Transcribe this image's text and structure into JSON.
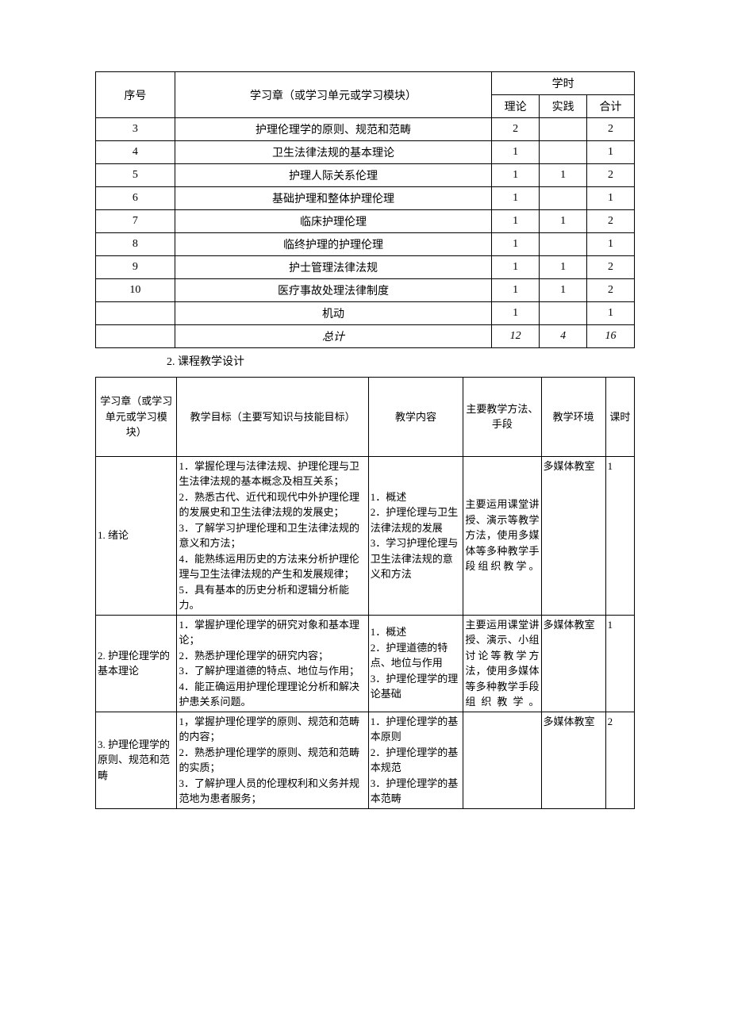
{
  "table1": {
    "header": {
      "seq": "序号",
      "chapter": "学习章（或学习单元或学习模块）",
      "hours": "学时",
      "theory": "理论",
      "practice": "实践",
      "total": "合计"
    },
    "rows": [
      {
        "seq": "3",
        "chapter": "护理伦理学的原则、规范和范畴",
        "theory": "2",
        "practice": "",
        "total": "2"
      },
      {
        "seq": "4",
        "chapter": "卫生法律法规的基本理论",
        "theory": "1",
        "practice": "",
        "total": "1"
      },
      {
        "seq": "5",
        "chapter": "护理人际关系伦理",
        "theory": "1",
        "practice": "1",
        "total": "2"
      },
      {
        "seq": "6",
        "chapter": "基础护理和整体护理伦理",
        "theory": "1",
        "practice": "",
        "total": "1"
      },
      {
        "seq": "7",
        "chapter": "临床护理伦理",
        "theory": "1",
        "practice": "1",
        "total": "2"
      },
      {
        "seq": "8",
        "chapter": "临终护理的护理伦理",
        "theory": "1",
        "practice": "",
        "total": "1"
      },
      {
        "seq": "9",
        "chapter": "护士管理法律法规",
        "theory": "1",
        "practice": "1",
        "total": "2"
      },
      {
        "seq": "10",
        "chapter": "医疗事故处理法律制度",
        "theory": "1",
        "practice": "1",
        "total": "2"
      },
      {
        "seq": "",
        "chapter": "机动",
        "theory": "1",
        "practice": "",
        "total": "1"
      }
    ],
    "totalRow": {
      "seq": "",
      "chapter": "总计",
      "theory": "12",
      "practice": "4",
      "total": "16"
    }
  },
  "sectionHeading": "2. 课程教学设计",
  "table2": {
    "header": {
      "c1": "学习章（或学习单元或学习模块）",
      "c2": "教学目标（主要写知识与技能目标）",
      "c3": "教学内容",
      "c4": "主要教学方法、手段",
      "c5": "教学环境",
      "c6": "课时"
    },
    "rows": [
      {
        "c1": "1. 绪论",
        "c2": "1．掌握伦理与法律法规、护理伦理与卫生法律法规的基本概念及相互关系；\n2．熟悉古代、近代和现代中外护理伦理的发展史和卫生法律法规的发展史；\n3．了解学习护理伦理和卫生法律法规的意义和方法；\n4．能熟练运用历史的方法来分析护理伦理与卫生法律法规的产生和发展规律；\n5．具有基本的历史分析和逻辑分析能力。",
        "c3": "1．概述\n2．护理伦理与卫生法律法规的发展\n3．学习护理伦理与卫生法律法规的意义和方法",
        "c4": "主要运用课堂讲授、演示等教学方法，使用多媒体等多种教学手段组织教学。",
        "c5": "多媒体教室",
        "c6": "1"
      },
      {
        "c1": "2. 护理伦理学的基本理论",
        "c2": "1．掌握护理伦理学的研究对象和基本理论；\n2．熟悉护理伦理学的研究内容；\n3．了解护理道德的特点、地位与作用；\n4．能正确运用护理伦理理论分析和解决护患关系问题。",
        "c3": "1．概述\n2．护理道德的特点、地位与作用\n3．护理伦理学的理论基础",
        "c4": "主要运用课堂讲授、演示、小组讨论等教学方法，使用多媒体等多种教学手段组织教学。",
        "c5": "多媒体教室",
        "c6": "1"
      },
      {
        "c1": "3. 护理伦理学的原则、规范和范畴",
        "c2": "1，掌握护理伦理学的原则、规范和范畴的内容；\n2．熟悉护理伦理学的原则、规范和范畴的实质；\n3．了解护理人员的伦理权利和义务并规范地为患者服务；",
        "c3": "1．护理伦理学的基本原则\n2．护理伦理学的基本规范\n3．护理伦理学的基本范畴",
        "c4": "",
        "c5": "多媒体教室",
        "c6": "2"
      }
    ]
  },
  "colors": {
    "border": "#000000",
    "bg": "#ffffff",
    "text": "#000000"
  }
}
